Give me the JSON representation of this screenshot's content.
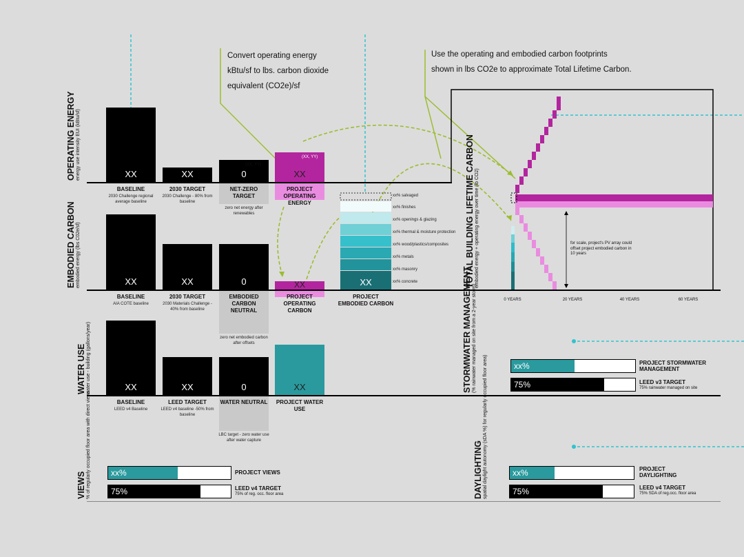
{
  "notes": {
    "convert": [
      "Convert operating energy",
      "kBtu/sf to lbs. carbon dioxide",
      "equivalent (CO2e)/sf"
    ],
    "lifetime": [
      "Use the operating and embodied carbon footprints",
      "shown in lbs CO2e to approximate Total Lifetime Carbon."
    ]
  },
  "operating": {
    "title": "OPERATING ENERGY",
    "subtitle": "energy use intensity EUI (kBtu/sf)",
    "bars": [
      {
        "value": "XX",
        "label": "BASELINE",
        "sub": "2030 Challenge regional average baseline",
        "level": 0.86
      },
      {
        "value": "XX",
        "label": "2030 TARGET",
        "sub": "2030 Challenge - 80% from baseline",
        "level": 0.17
      },
      {
        "value": "0",
        "label": "NET-ZERO TARGET",
        "sub": "zero net energy after renewables",
        "level": 0.26,
        "xy": "(XX, YY)"
      },
      {
        "value": "XX",
        "label": "PROJECT OPERATING ENERGY",
        "sub": "",
        "level": 0.33,
        "xy": "(XX, YY)"
      }
    ]
  },
  "embodied": {
    "title": "EMBODIED CARBON",
    "subtitle": "embodied energy (lbs C02e/sf)",
    "bars": [
      {
        "value": "XX",
        "label": "BASELINE",
        "sub": "AIA COTE baseline",
        "level": 0.95
      },
      {
        "value": "XX",
        "label": "2030 TARGET",
        "sub": "2030 Materials Challenge - 40% from baseline",
        "level": 0.56
      },
      {
        "value": "0",
        "label": "EMBODIED CARBON NEUTRAL",
        "sub": "zero net embodied carbon after offsets",
        "level": 0.56
      },
      {
        "value": "XX",
        "label": "PROJECT OPERATING CARBON",
        "sub": "",
        "level": 0.1
      },
      {
        "value": "XX",
        "label": "PROJECT EMBODIED CARBON",
        "sub": ""
      }
    ],
    "legend": [
      "xx% salvaged",
      "xx% finishes",
      "xx% openings & glazing",
      "xx% thermal & moisture protection",
      "xx% wood/plastics/composites",
      "xx% metals",
      "xx% masonry",
      "xx% concrete"
    ]
  },
  "water": {
    "title": "WATER USE",
    "subtitle": "water use - building (gallons/year)",
    "bars": [
      {
        "value": "XX",
        "label": "BASELINE",
        "sub": "LEED v4 Baseline",
        "level": 0.81
      },
      {
        "value": "XX",
        "label": "LEED TARGET",
        "sub": "LEED v4 baseline -50% from baseline",
        "level": 0.42
      },
      {
        "value": "0",
        "label": "WATER NEUTRAL",
        "sub": "LBC target - zero water use after water capture",
        "level": 0.42
      },
      {
        "value": "XX",
        "label": "PROJECT WATER USE",
        "sub": "",
        "level": 0.56
      }
    ]
  },
  "lifetime": {
    "title": "TOTAL BUILDING LIFETIME CARBON",
    "subtitle": "embodied energy + operating energy over time (lb CO2)",
    "ticks": [
      "0 YEARS",
      "20 YEARS",
      "40 YEARS",
      "60 YEARS"
    ],
    "pv_note": "for scale, project's PV array could offset project embodied carbon in 10 years"
  },
  "stormwater": {
    "title": "STORMWATER MANAGEMENT",
    "subtitle": "(% rainwater managed on site from a 2-year storm)",
    "rows": [
      {
        "value": "xx%",
        "label": "PROJECT STORMWATER MANAGEMENT",
        "sub": "",
        "fraction": 0.51,
        "color": "#2a9a9e"
      },
      {
        "value": "75%",
        "label": "LEED v3 TARGET",
        "sub": "75% rainwater managed on site",
        "fraction": 0.75,
        "color": "#000000"
      }
    ]
  },
  "views": {
    "title": "VIEWS",
    "subtitle": "% of regularly occupied floor area with direct views",
    "rows": [
      {
        "value": "xx%",
        "label": "PROJECT VIEWS",
        "sub": "",
        "fraction": 0.49,
        "color": "#2a9a9e"
      },
      {
        "value": "75%",
        "label": "LEED v4 TARGET",
        "sub": "75% of reg. occ. floor area",
        "fraction": 0.75,
        "color": "#000000"
      }
    ]
  },
  "daylighting": {
    "title": "DAYLIGHTING",
    "subtitle": "spatial daylight autonomy (sDA %) for regularly occupied floor area)",
    "rows": [
      {
        "value": "xx%",
        "label": "PROJECT DAYLIGHTING",
        "sub": "",
        "fraction": 0.36,
        "color": "#2a9a9e"
      },
      {
        "value": "75%",
        "label": "LEED v4 TARGET",
        "sub": "75% SDA of reg.occ. floor area",
        "fraction": 0.75,
        "color": "#000000"
      }
    ]
  },
  "colors": {
    "magenta": "#b3259e",
    "pink": "#e98ce0",
    "teal": "#2a9a9e",
    "black": "#000000",
    "grey": "#c9c9c9",
    "arrow": "#9bbd2f",
    "guide": "#2fc3cf"
  }
}
